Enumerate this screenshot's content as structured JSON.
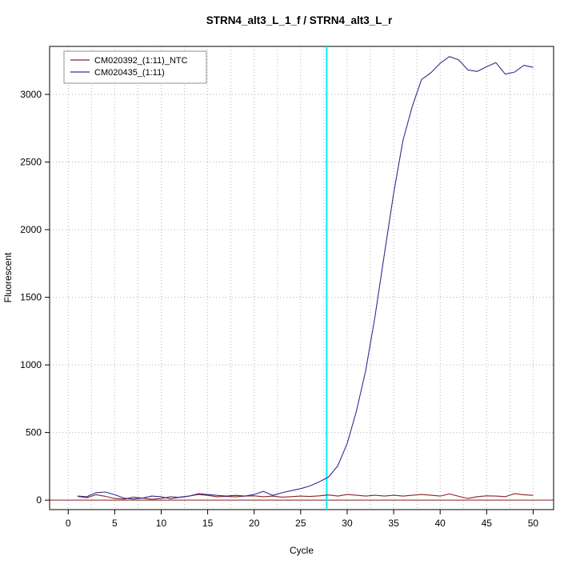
{
  "window": {
    "background": "#ffffff"
  },
  "chart_data": {
    "type": "line",
    "title": "STRN4_alt3_L_1_f / STRN4_alt3_L_r",
    "xlabel": "Cycle",
    "ylabel": "Fluorescent",
    "xlim": [
      -2,
      52.2
    ],
    "ylim": [
      -70,
      3355
    ],
    "x_ticks": [
      0,
      5,
      10,
      15,
      20,
      25,
      30,
      35,
      40,
      45,
      50
    ],
    "y_ticks": [
      0,
      500,
      1000,
      1500,
      2000,
      2500,
      3000
    ],
    "x_grid_step": 2.5,
    "grid_color": "#b3b3b3",
    "box_color": "#000000",
    "baseline": {
      "y": 0,
      "color": "#8B2323"
    },
    "threshold_line": {
      "x": 27.8,
      "color": "#00EEEE"
    },
    "legend_position": "topleft",
    "series": [
      {
        "name": "CM020392_(1:11)_NTC",
        "color": "#8B2323",
        "x": [
          1,
          2,
          3,
          4,
          5,
          6,
          7,
          8,
          9,
          10,
          11,
          12,
          13,
          14,
          15,
          16,
          17,
          18,
          19,
          20,
          21,
          22,
          23,
          24,
          25,
          26,
          27,
          28,
          29,
          30,
          31,
          32,
          33,
          34,
          35,
          36,
          37,
          38,
          39,
          40,
          41,
          42,
          43,
          44,
          45,
          46,
          47,
          48,
          49,
          50
        ],
        "values": [
          28,
          18,
          40,
          28,
          12,
          8,
          22,
          15,
          6,
          12,
          25,
          20,
          30,
          42,
          35,
          25,
          28,
          24,
          30,
          32,
          25,
          30,
          22,
          26,
          30,
          27,
          32,
          38,
          30,
          42,
          36,
          30,
          36,
          30,
          36,
          30,
          36,
          42,
          36,
          30,
          46,
          28,
          12,
          26,
          32,
          30,
          26,
          48,
          40,
          35
        ]
      },
      {
        "name": "CM020435_(1:11)",
        "color": "#30308C",
        "x": [
          1,
          2,
          3,
          4,
          5,
          6,
          7,
          8,
          9,
          10,
          11,
          12,
          13,
          14,
          15,
          16,
          17,
          18,
          19,
          20,
          21,
          22,
          23,
          24,
          25,
          26,
          27,
          28,
          29,
          30,
          31,
          32,
          33,
          34,
          35,
          36,
          37,
          38,
          39,
          40,
          41,
          42,
          43,
          44,
          45,
          46,
          47,
          48,
          49,
          50
        ],
        "values": [
          30,
          25,
          55,
          60,
          40,
          15,
          8,
          15,
          30,
          25,
          10,
          22,
          30,
          48,
          42,
          35,
          30,
          35,
          30,
          42,
          65,
          35,
          55,
          70,
          85,
          105,
          135,
          170,
          255,
          420,
          660,
          960,
          1360,
          1820,
          2270,
          2660,
          2910,
          3110,
          3160,
          3230,
          3280,
          3255,
          3180,
          3170,
          3205,
          3235,
          3150,
          3165,
          3215,
          3200
        ]
      }
    ]
  }
}
